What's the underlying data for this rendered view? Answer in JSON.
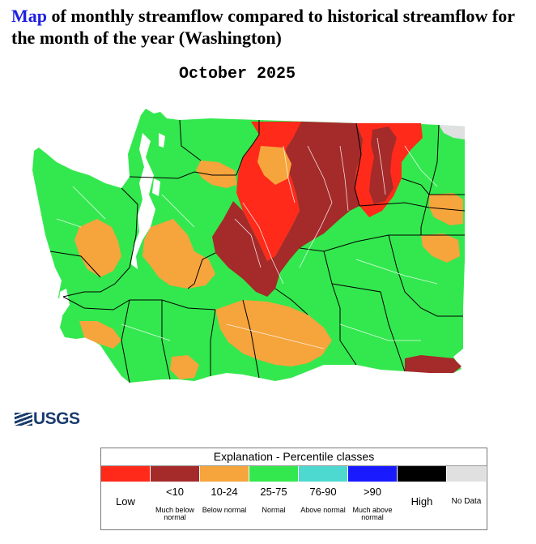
{
  "title": {
    "highlight": "Map",
    "rest": " of monthly streamflow compared to historical streamflow for the month of the year (Washington)"
  },
  "period": "October 2025",
  "logo_text": "USGS",
  "legend": {
    "title": "Explanation - Percentile classes",
    "classes": [
      {
        "key": "low",
        "color": "#ff2a1a",
        "label": "Low",
        "range": "",
        "description": ""
      },
      {
        "key": "lt10",
        "color": "#a52a2a",
        "label": "",
        "range": "<10",
        "description": "Much below normal"
      },
      {
        "key": "10-24",
        "color": "#f6a43c",
        "label": "",
        "range": "10-24",
        "description": "Below normal"
      },
      {
        "key": "25-75",
        "color": "#33e84e",
        "label": "",
        "range": "25-75",
        "description": "Normal"
      },
      {
        "key": "76-90",
        "color": "#4dd9d0",
        "label": "",
        "range": "76-90",
        "description": "Above normal"
      },
      {
        "key": "gt90",
        "color": "#1a1aff",
        "label": "",
        "range": ">90",
        "description": "Much above normal"
      },
      {
        "key": "high",
        "color": "#000000",
        "label": "High",
        "range": "",
        "description": ""
      },
      {
        "key": "nodata",
        "color": "#e0e0e0",
        "label": "No Data",
        "range": "",
        "description": ""
      }
    ]
  },
  "map_colors": {
    "normal": "#33e84e",
    "below_normal": "#f6a43c",
    "much_below_normal": "#a52a2a",
    "low": "#ff2a1a",
    "no_data": "#e0e0e0",
    "water": "#ffffff",
    "county_line": "#000000",
    "river": "#ffffff"
  }
}
